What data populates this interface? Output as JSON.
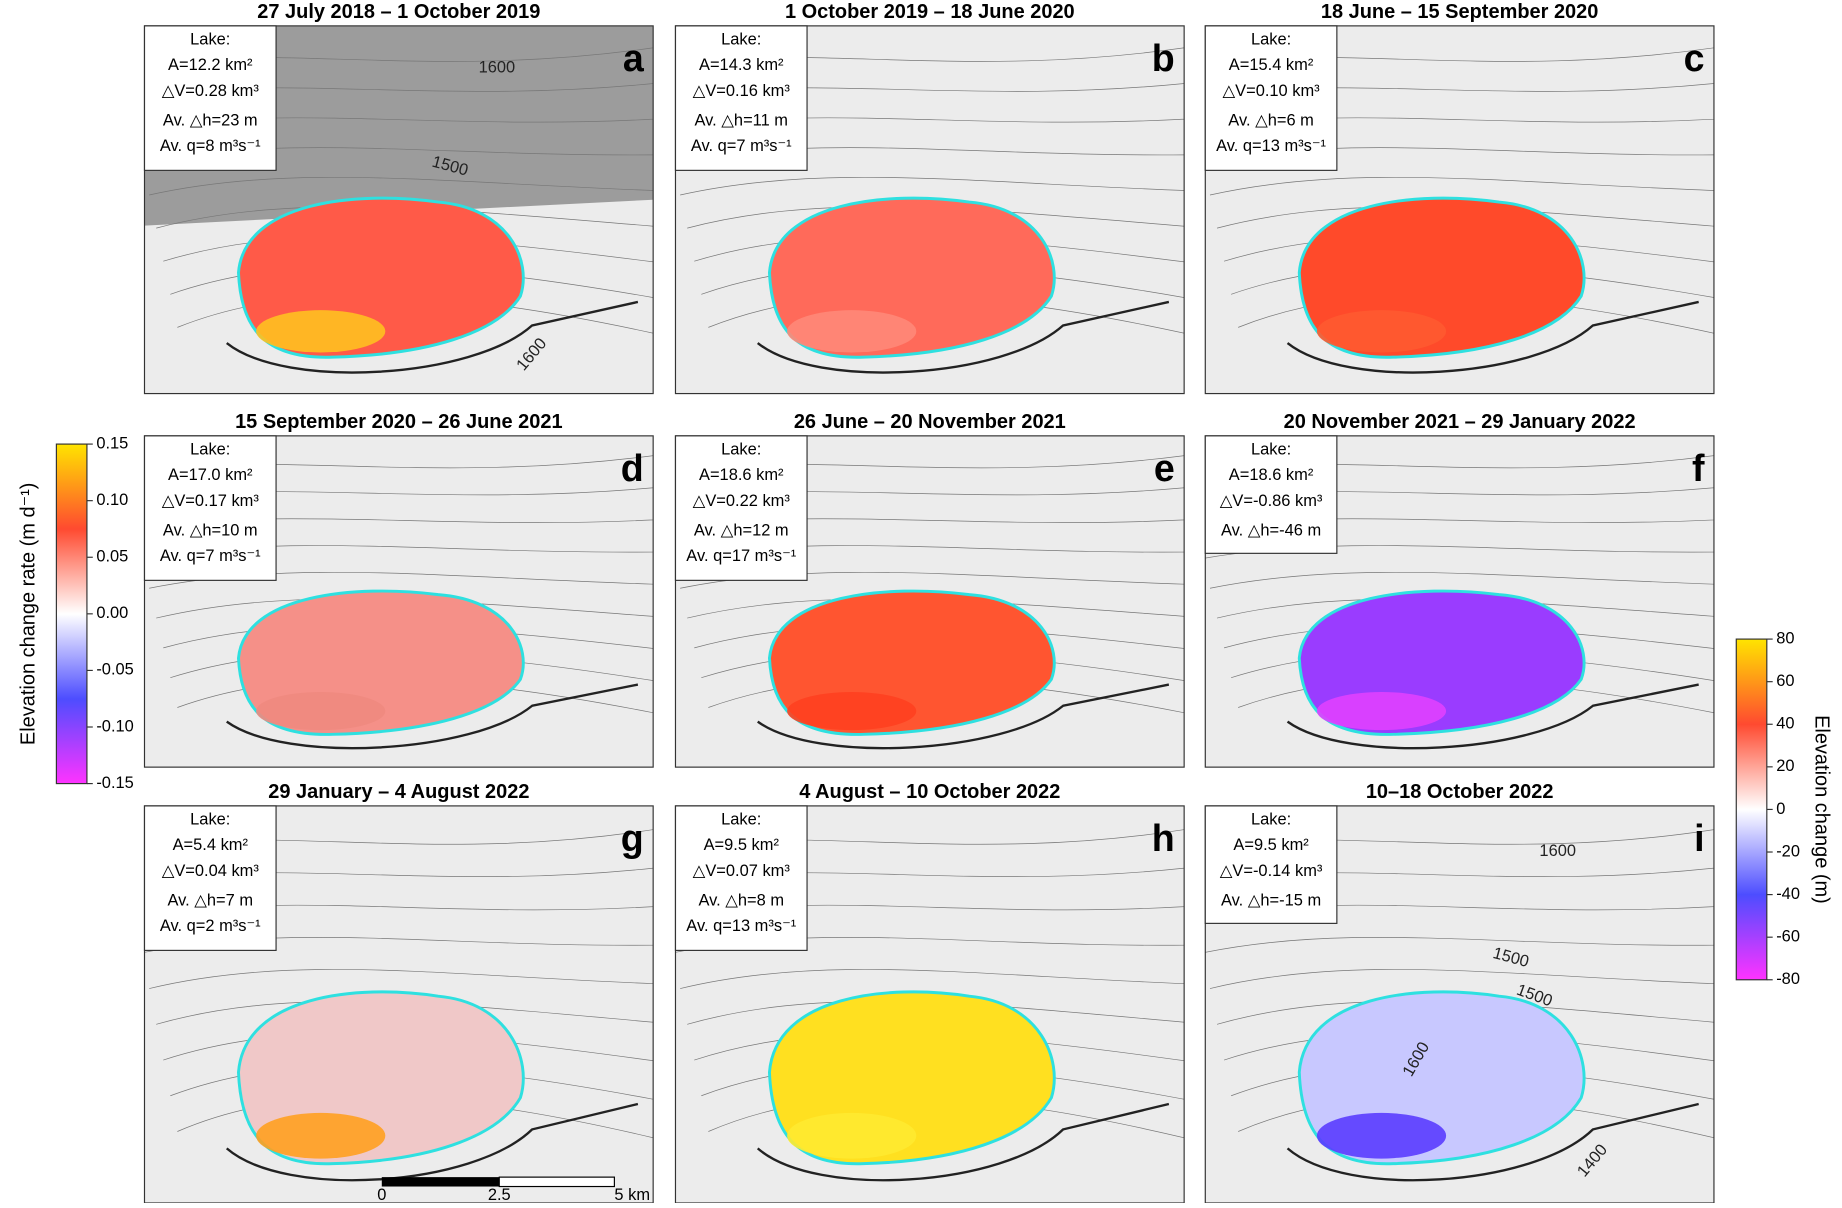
{
  "panels": [
    {
      "title": "27 July 2018 – 1 October 2019",
      "letter": "a",
      "info": [
        "Lake:",
        "A=12.2 km²",
        "△V=0.28 km³",
        "Av. △h=23 m",
        "Av. q=8 m³s⁻¹"
      ],
      "contours": [
        "1600",
        "1500",
        "1600"
      ]
    },
    {
      "title": "1 October 2019 – 18 June 2020",
      "letter": "b",
      "info": [
        "Lake:",
        "A=14.3 km²",
        "△V=0.16 km³",
        "Av. △h=11 m",
        "Av. q=7 m³s⁻¹"
      ],
      "contours": []
    },
    {
      "title": "18 June – 15 September 2020",
      "letter": "c",
      "info": [
        "Lake:",
        "A=15.4 km²",
        "△V=0.10 km³",
        "Av. △h=6 m",
        "Av. q=13 m³s⁻¹"
      ],
      "contours": []
    },
    {
      "title": "15 September 2020 – 26 June 2021",
      "letter": "d",
      "info": [
        "Lake:",
        "A=17.0 km²",
        "△V=0.17 km³",
        "Av. △h=10 m",
        "Av. q=7 m³s⁻¹"
      ],
      "contours": []
    },
    {
      "title": "26 June – 20 November 2021",
      "letter": "e",
      "info": [
        "Lake:",
        "A=18.6 km²",
        "△V=0.22 km³",
        "Av. △h=12 m",
        "Av. q=17 m³s⁻¹"
      ],
      "contours": []
    },
    {
      "title": "20 November 2021 – 29 January 2022",
      "letter": "f",
      "info": [
        "Lake:",
        "A=18.6 km²",
        "△V=-0.86 km³",
        "Av. △h=-46 m"
      ],
      "contours": []
    },
    {
      "title": "29 January – 4 August 2022",
      "letter": "g",
      "info": [
        "Lake:",
        "A=5.4 km²",
        "△V=0.04 km³",
        "Av. △h=7 m",
        "Av. q=2 m³s⁻¹"
      ],
      "contours": []
    },
    {
      "title": "4 August – 10 October 2022",
      "letter": "h",
      "info": [
        "Lake:",
        "A=9.5 km²",
        "△V=0.07 km³",
        "Av. △h=8 m",
        "Av. q=13 m³s⁻¹"
      ],
      "contours": []
    },
    {
      "title": "10–18 October 2022",
      "letter": "i",
      "info": [
        "Lake:",
        "A=9.5 km²",
        "△V=-0.14 km³",
        "Av. △h=-15 m"
      ],
      "contours": [
        "1600",
        "1500",
        "1400",
        "1600",
        "1500"
      ]
    }
  ],
  "rate_colorbar": {
    "label": "Elevation change rate (m d⁻¹)",
    "ticks": [
      "0.15",
      "0.10",
      "0.05",
      "0.00",
      "-0.05",
      "-0.10",
      "-0.15"
    ]
  },
  "change_colorbar": {
    "label": "Elevation change (m)",
    "ticks": [
      "80",
      "60",
      "40",
      "20",
      "0",
      "-20",
      "-40",
      "-60",
      "-80"
    ]
  },
  "scale_bar": [
    "0",
    "2.5",
    "5 km"
  ]
}
